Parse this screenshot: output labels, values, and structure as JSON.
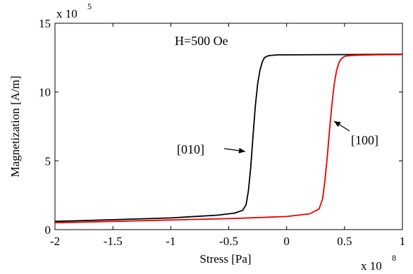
{
  "chart_data": {
    "type": "line",
    "title": "",
    "xlabel": "Stress [Pa]",
    "ylabel": "Magnetization [A/m]",
    "x_multiplier": {
      "base": "x 10",
      "exponent": "8"
    },
    "y_multiplier": {
      "base": "x 10",
      "exponent": "5"
    },
    "xlim": [
      -2,
      1
    ],
    "ylim": [
      0,
      15
    ],
    "xticks": [
      -2,
      -1.5,
      -1,
      -0.5,
      0,
      0.5,
      1
    ],
    "xtick_labels": [
      "-2",
      "-1.5",
      "-1",
      "-0.5",
      "0",
      "0.5",
      "1"
    ],
    "yticks": [
      0,
      5,
      10,
      15
    ],
    "ytick_labels": [
      "0",
      "5",
      "10",
      "15"
    ],
    "grid": false,
    "box": true,
    "annotations": {
      "field": "H=500 Oe",
      "label_010": "[010]",
      "label_100": "[100]"
    },
    "series": [
      {
        "name": "[010]",
        "color": "#000000",
        "x": [
          -2.0,
          -1.5,
          -1.0,
          -0.6,
          -0.45,
          -0.38,
          -0.35,
          -0.33,
          -0.31,
          -0.29,
          -0.27,
          -0.25,
          -0.23,
          -0.21,
          -0.19,
          -0.17,
          -0.15,
          -0.12,
          -0.08,
          0.0,
          0.5,
          1.0
        ],
        "y": [
          0.6,
          0.72,
          0.85,
          1.05,
          1.2,
          1.4,
          1.8,
          2.8,
          4.5,
          6.8,
          9.0,
          10.6,
          11.6,
          12.2,
          12.5,
          12.6,
          12.65,
          12.67,
          12.7,
          12.7,
          12.72,
          12.75
        ]
      },
      {
        "name": "[100]",
        "color": "#e60000",
        "x": [
          -2.0,
          -1.5,
          -1.0,
          -0.5,
          0.0,
          0.2,
          0.28,
          0.31,
          0.33,
          0.35,
          0.37,
          0.39,
          0.41,
          0.43,
          0.45,
          0.47,
          0.5,
          0.55,
          0.62,
          0.75,
          1.0
        ],
        "y": [
          0.5,
          0.6,
          0.7,
          0.8,
          0.95,
          1.15,
          1.5,
          2.2,
          3.5,
          5.2,
          7.2,
          9.0,
          10.5,
          11.5,
          12.1,
          12.4,
          12.6,
          12.65,
          12.68,
          12.7,
          12.72
        ]
      }
    ]
  }
}
